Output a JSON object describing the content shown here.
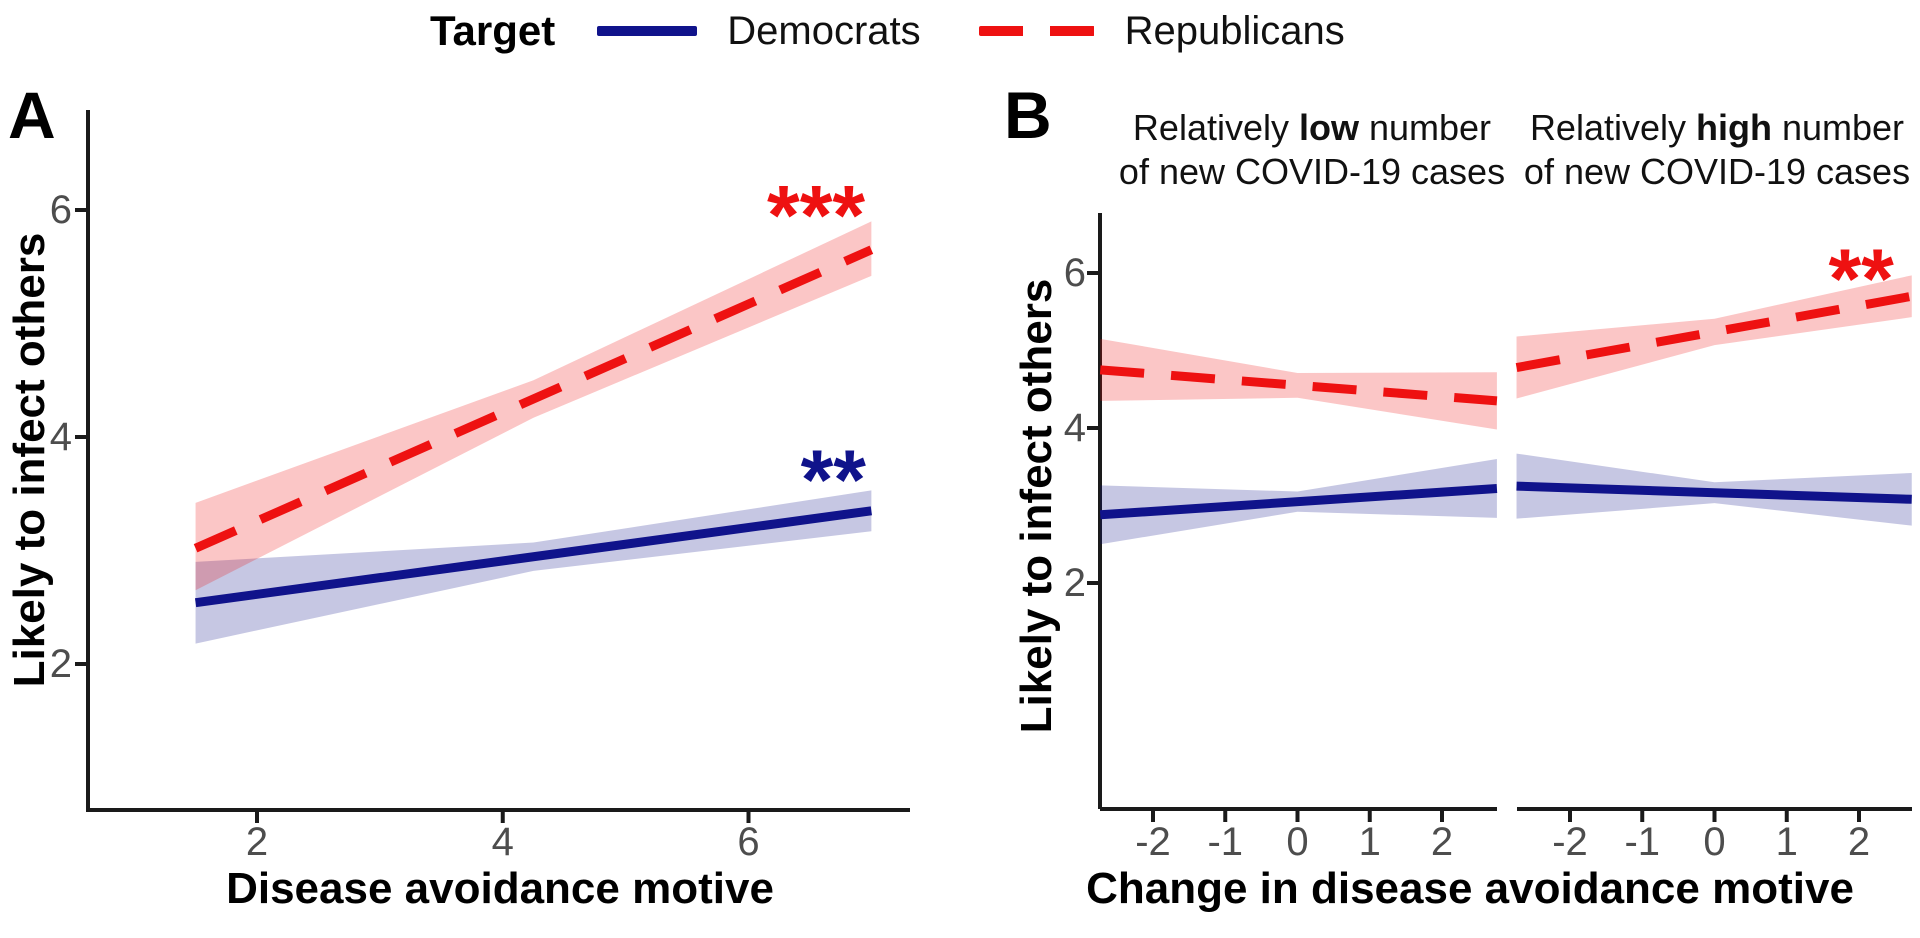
{
  "figure": {
    "legend": {
      "title": "Target",
      "items": [
        {
          "label": "Democrats",
          "style": "solid"
        },
        {
          "label": "Republicans",
          "style": "dashed"
        }
      ]
    },
    "panels": [
      {
        "label": "A"
      },
      {
        "label": "B"
      }
    ]
  },
  "colors": {
    "democrat": "#10138b",
    "republican": "#ee1111",
    "band_opacity": 0.24,
    "axis": "#1a1a1a",
    "tick_label": "#4d4d4d"
  },
  "chart_data": [
    {
      "id": "A",
      "type": "line",
      "xlabel": "Disease avoidance motive",
      "ylabel": "Likely to infect others",
      "x_ticks": [
        2,
        4,
        6
      ],
      "y_ticks": [
        2,
        4,
        6
      ],
      "xlim": [
        0.6,
        7.3
      ],
      "ylim": [
        0.7,
        6.9
      ],
      "grid": false,
      "series": [
        {
          "name": "Democrats",
          "style": "solid",
          "x": [
            1.5,
            7
          ],
          "y": [
            2.54,
            3.35
          ],
          "significance": "**",
          "annotation": {
            "text": "**",
            "x": 6.69,
            "y": 3.74
          },
          "ci": {
            "x": [
              1.5,
              4.25,
              7
            ],
            "lo": [
              2.18,
              2.82,
              3.17
            ],
            "hi": [
              2.9,
              3.07,
              3.53
            ]
          }
        },
        {
          "name": "Republicans",
          "style": "dashed",
          "x": [
            1.5,
            7
          ],
          "y": [
            3.02,
            5.65
          ],
          "significance": "***",
          "annotation": {
            "text": "***",
            "x": 6.55,
            "y": 6.07
          },
          "ci": {
            "x": [
              1.5,
              4.25,
              7
            ],
            "lo": [
              2.65,
              4.17,
              5.42
            ],
            "hi": [
              3.42,
              4.5,
              5.9
            ]
          }
        }
      ]
    },
    {
      "id": "B",
      "type": "line",
      "xlabel": "Change in disease avoidance motive",
      "ylabel": "Likely to infect others",
      "x_ticks": [
        -2,
        -1,
        0,
        1,
        2
      ],
      "y_ticks": [
        2,
        4,
        6
      ],
      "ylim": [
        1.0,
        6.8
      ],
      "grid": false,
      "facets": [
        {
          "title": {
            "pre": "Relatively ",
            "bold": "low",
            "post": " number",
            "line2": "of new COVID-19 cases"
          },
          "series": [
            {
              "name": "Democrats",
              "style": "solid",
              "x": [
                -2.73,
                2.76
              ],
              "y": [
                2.88,
                3.22
              ],
              "significance": null,
              "ci": {
                "x": [
                  -2.73,
                  0,
                  2.76
                ],
                "lo": [
                  2.5,
                  2.92,
                  2.84
                ],
                "hi": [
                  3.26,
                  3.18,
                  3.6
                ]
              }
            },
            {
              "name": "Republicans",
              "style": "dashed",
              "x": [
                -2.73,
                2.76
              ],
              "y": [
                4.75,
                4.35
              ],
              "significance": null,
              "ci": {
                "x": [
                  -2.73,
                  0,
                  2.76
                ],
                "lo": [
                  4.35,
                  4.39,
                  3.98
                ],
                "hi": [
                  5.15,
                  4.71,
                  4.72
                ]
              }
            }
          ]
        },
        {
          "title": {
            "pre": "Relatively ",
            "bold": "high",
            "post": " number",
            "line2": "of new COVID-19 cases"
          },
          "series": [
            {
              "name": "Democrats",
              "style": "solid",
              "x": [
                -2.74,
                2.73
              ],
              "y": [
                3.25,
                3.08
              ],
              "significance": null,
              "ci": {
                "x": [
                  -2.74,
                  0,
                  2.73
                ],
                "lo": [
                  2.83,
                  3.03,
                  2.74
                ],
                "hi": [
                  3.67,
                  3.3,
                  3.42
                ]
              }
            },
            {
              "name": "Republicans",
              "style": "dashed",
              "x": [
                -2.74,
                2.73
              ],
              "y": [
                4.78,
                5.7
              ],
              "significance": "**",
              "annotation": {
                "text": "**",
                "x": 2.03,
                "y": 6.1
              },
              "ci": {
                "x": [
                  -2.74,
                  0,
                  2.73
                ],
                "lo": [
                  4.38,
                  5.07,
                  5.43
                ],
                "hi": [
                  5.18,
                  5.41,
                  5.97
                ]
              }
            }
          ]
        }
      ]
    }
  ]
}
